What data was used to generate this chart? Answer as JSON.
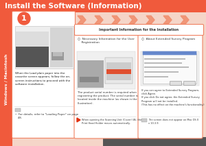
{
  "title": "Install the Software (Information)",
  "title_bg": "#F05A3C",
  "title_fg": "#FFFFFF",
  "page_bg": "#F5D5C8",
  "sidebar_color": "#F05A3C",
  "sidebar_text": "Windows / Macintosh",
  "sidebar_text_color": "#FFFFFF",
  "step_circle_color": "#F05A3C",
  "step_number": "1",
  "arrow_color": "#F09070",
  "important_banner_bg": "#FFFFFF",
  "important_banner_border": "#F08060",
  "important_banner_text": "Important Information for the Installation",
  "important_banner_fg": "#333333",
  "box1_title": "○  Necessary Information for the User\n    Registration",
  "box1_body": "The product serial number is required when\nregistering the product. The serial number is\nlocated inside the machine (as shown in the\nillustration).",
  "box1_note": "When opening the Scanning Unit (Cover) (A), the\nPrint Head Holder moves automatically.",
  "box2_title": "○  About Extended Survey Program",
  "box2_body": "If you can agree to Extended Survey Program,\nclick Agree.\nIf you click Do not agree, the Extended Survey\nProgram will not be installed.\n(This has no effect on the machine's functionality.)",
  "box2_note": "The screen does not appear on Mac OS X\nv 10.3.9.",
  "left_box_note1": "•  For details, refer to \"Loading Paper\" on page\n   48.",
  "left_box_body": "When the Load plain paper into the\ncassette screen appears, follow the on-\nscreen instructions to proceed with the\nsoftware installation.",
  "bottom_bar_color": "#555555",
  "box_border_color": "#F08060",
  "flag_color": "#E03010",
  "title_fontsize": 7.5,
  "body_fontsize": 3.2,
  "note_fontsize": 2.8
}
